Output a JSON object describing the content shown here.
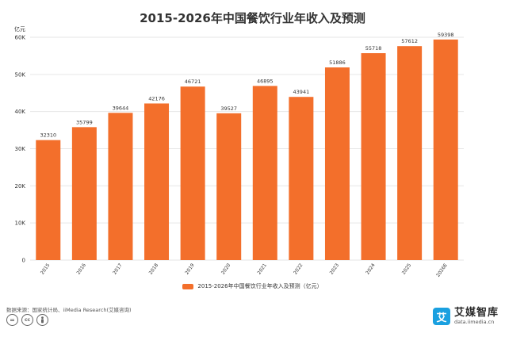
{
  "chart_data": {
    "type": "bar",
    "title": "2015-2026年中国餐饮行业年收入及预测",
    "y_unit": "亿元",
    "categories": [
      "2015",
      "2016",
      "2017",
      "2018",
      "2019",
      "2020",
      "2021",
      "2022",
      "2023",
      "2024",
      "2025",
      "2026E"
    ],
    "series": [
      {
        "name": "2015-2026年中国餐饮行业年收入及预测（亿元）",
        "values": [
          32310,
          35799,
          39644,
          42176,
          46721,
          39527,
          46895,
          43941,
          51886,
          55718,
          57612,
          59398
        ]
      }
    ],
    "ylim": [
      0,
      60000
    ],
    "y_ticks": [
      0,
      10000,
      20000,
      30000,
      40000,
      50000,
      60000
    ],
    "y_tick_labels": [
      "0",
      "10K",
      "20K",
      "30K",
      "40K",
      "50K",
      "60K"
    ],
    "grid": true,
    "legend_position": "bottom",
    "bar_color": "#f36f2b"
  },
  "footer": {
    "source": "数据来源：国家统计局、iiMedia Research(艾媒咨询)",
    "cc_icons": [
      "equals-icon",
      "cc-icon",
      "person-icon"
    ],
    "brand_logo_glyph": "艾",
    "brand_name": "艾媒智库",
    "brand_url": "data.iimedia.cn",
    "brand_color": "#1aa0e0"
  }
}
